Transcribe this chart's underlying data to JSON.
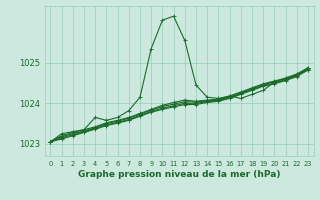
{
  "xlabel": "Graphe pression niveau de la mer (hPa)",
  "background_color": "#cce8df",
  "plot_bg_color": "#cce8df",
  "grid_color": "#99ccbb",
  "line_color": "#1a6b2a",
  "ylim": [
    1022.7,
    1026.4
  ],
  "xlim": [
    -0.5,
    23.5
  ],
  "yticks": [
    1023,
    1024,
    1025
  ],
  "xticks": [
    0,
    1,
    2,
    3,
    4,
    5,
    6,
    7,
    8,
    9,
    10,
    11,
    12,
    13,
    14,
    15,
    16,
    17,
    18,
    19,
    20,
    21,
    22,
    23
  ],
  "series": [
    [
      1023.05,
      1023.25,
      1023.3,
      1023.35,
      1023.65,
      1023.58,
      1023.65,
      1023.82,
      1024.15,
      1025.35,
      1026.05,
      1026.15,
      1025.55,
      1024.45,
      1024.15,
      1024.12,
      1024.18,
      1024.12,
      1024.22,
      1024.32,
      1024.52,
      1024.62,
      1024.72,
      1024.82
    ],
    [
      1023.05,
      1023.2,
      1023.28,
      1023.35,
      1023.42,
      1023.52,
      1023.58,
      1023.65,
      1023.75,
      1023.85,
      1023.95,
      1024.02,
      1024.08,
      1024.05,
      1024.08,
      1024.1,
      1024.18,
      1024.28,
      1024.38,
      1024.48,
      1024.55,
      1024.62,
      1024.72,
      1024.88
    ],
    [
      1023.05,
      1023.18,
      1023.25,
      1023.32,
      1023.4,
      1023.5,
      1023.56,
      1023.63,
      1023.73,
      1023.83,
      1023.92,
      1023.98,
      1024.04,
      1024.03,
      1024.06,
      1024.08,
      1024.16,
      1024.26,
      1024.36,
      1024.46,
      1024.53,
      1024.6,
      1024.7,
      1024.86
    ],
    [
      1023.05,
      1023.15,
      1023.22,
      1023.3,
      1023.38,
      1023.47,
      1023.53,
      1023.6,
      1023.7,
      1023.8,
      1023.88,
      1023.94,
      1024.0,
      1024.0,
      1024.04,
      1024.06,
      1024.14,
      1024.24,
      1024.34,
      1024.44,
      1024.5,
      1024.58,
      1024.68,
      1024.84
    ],
    [
      1023.05,
      1023.12,
      1023.2,
      1023.28,
      1023.36,
      1023.45,
      1023.51,
      1023.58,
      1023.68,
      1023.78,
      1023.85,
      1023.91,
      1023.97,
      1023.97,
      1024.02,
      1024.05,
      1024.12,
      1024.22,
      1024.32,
      1024.42,
      1024.48,
      1024.56,
      1024.66,
      1024.82
    ]
  ]
}
